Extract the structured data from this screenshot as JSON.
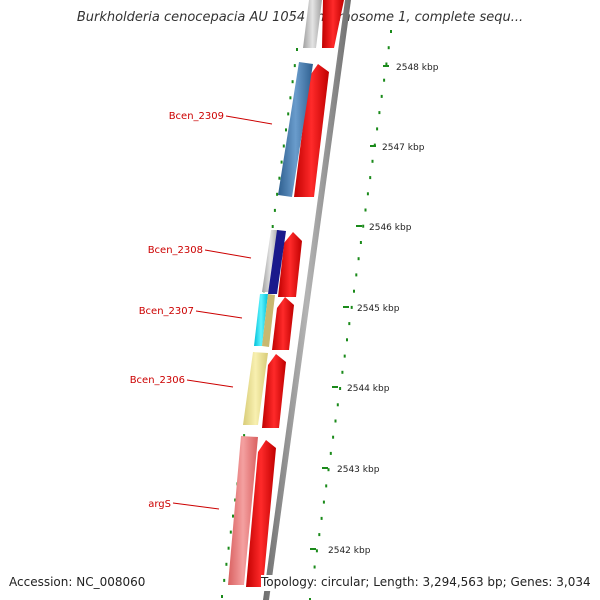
{
  "title": "Burkholderia cenocepacia AU 1054 chromosome 1, complete sequ...",
  "accession": "Accession: NC_008060",
  "topology": "Topology: circular; Length: 3,294,563 bp; Genes: 3,034",
  "scale_ticks": [
    {
      "label": "2548 kbp"
    },
    {
      "label": "2547 kbp"
    },
    {
      "label": "2546 kbp"
    },
    {
      "label": "2545 kbp"
    },
    {
      "label": "2544 kbp"
    },
    {
      "label": "2543 kbp"
    },
    {
      "label": "2542 kbp"
    }
  ],
  "gene_labels": [
    {
      "name": "Bcen_2309"
    },
    {
      "name": "Bcen_2308"
    },
    {
      "name": "Bcen_2307"
    },
    {
      "name": "Bcen_2306"
    },
    {
      "name": "argS"
    }
  ],
  "colors": {
    "backbone": "#8c8c8c",
    "cds_arrow": "#ff0000",
    "gene_label": "#cc0000",
    "scale_tick": "#1a8a1a",
    "bcen_2309": "#4a7fb5",
    "bcen_2308": "#1a1a8c",
    "bcen_2307": "#00e5ff",
    "bcen_2306": "#f0e68c",
    "args": "#f08080"
  }
}
